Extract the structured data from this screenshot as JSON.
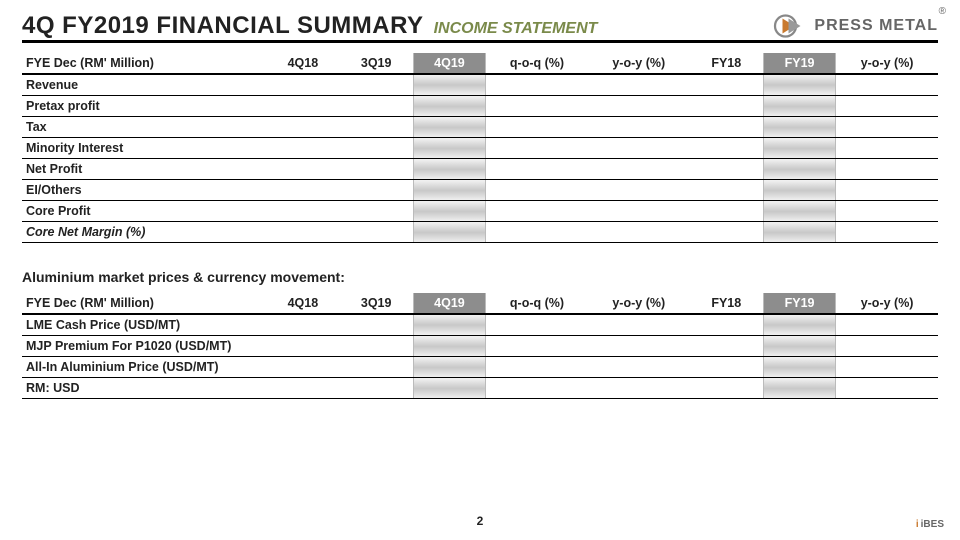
{
  "colors": {
    "header_rule": "#000000",
    "subtitle": "#7a8a4a",
    "highlight_header_bg": "#8d8d8d",
    "highlight_header_text": "#ffffff",
    "title": "#222222"
  },
  "header": {
    "title": "4Q FY2019 FINANCIAL SUMMARY",
    "subtitle": "INCOME STATEMENT",
    "logo_text": "PRESS METAL",
    "registered": "®"
  },
  "table1": {
    "label_header": "FYE Dec (RM' Million)",
    "columns": [
      "4Q18",
      "3Q19",
      "4Q19",
      "q-o-q (%)",
      "y-o-y (%)",
      "FY18",
      "FY19",
      "y-o-y (%)"
    ],
    "highlight_cols": [
      2,
      6
    ],
    "rows": [
      {
        "label": "Revenue"
      },
      {
        "label": "Pretax profit"
      },
      {
        "label": "Tax"
      },
      {
        "label": "Minority Interest"
      },
      {
        "label": "Net Profit"
      },
      {
        "label": "EI/Others"
      },
      {
        "label": "Core Profit"
      },
      {
        "label": "Core Net Margin (%)",
        "italic": true
      }
    ]
  },
  "section2_label": "Aluminium market prices & currency movement:",
  "table2": {
    "label_header": "FYE Dec (RM' Million)",
    "columns": [
      "4Q18",
      "3Q19",
      "4Q19",
      "q-o-q (%)",
      "y-o-y (%)",
      "FY18",
      "FY19",
      "y-o-y (%)"
    ],
    "highlight_cols": [
      2,
      6
    ],
    "rows": [
      {
        "label": "LME Cash Price (USD/MT)"
      },
      {
        "label": "MJP Premium For P1020 (USD/MT)"
      },
      {
        "label": "All-In Aluminium Price (USD/MT)"
      },
      {
        "label": "RM: USD"
      }
    ]
  },
  "page_number": "2",
  "bottom_brand": "iBES"
}
